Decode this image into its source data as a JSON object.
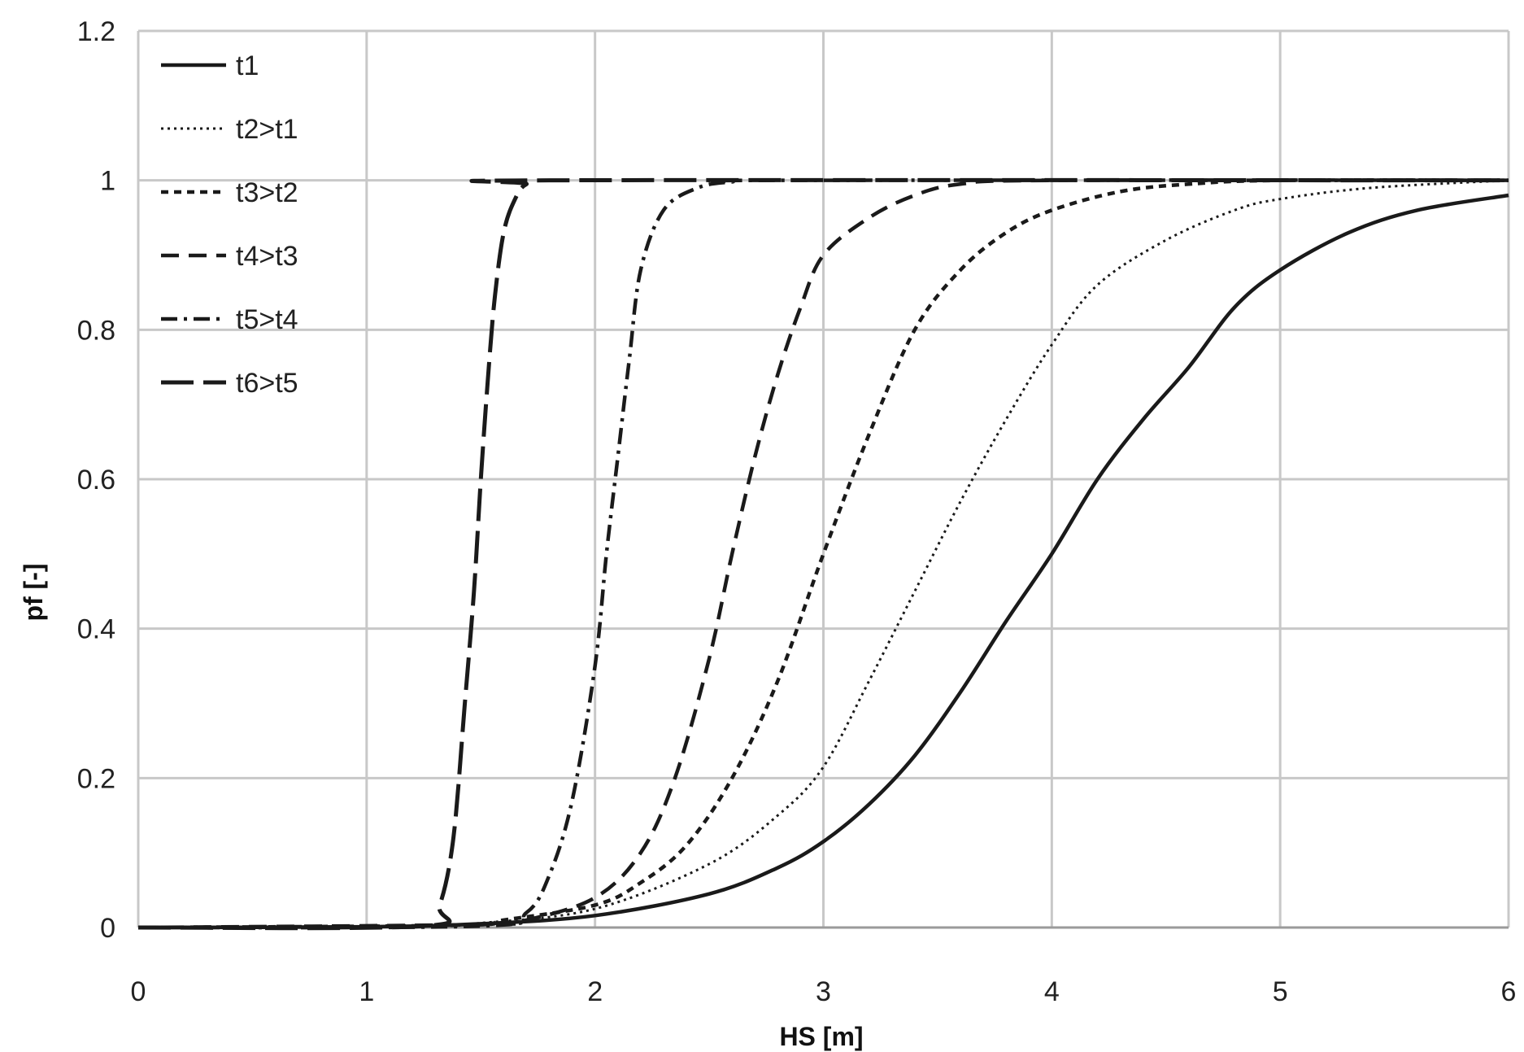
{
  "chart_data": {
    "type": "line",
    "title": "",
    "xlabel": "HS [m]",
    "ylabel": "pf [-]",
    "xlim": [
      0,
      6
    ],
    "ylim": [
      0,
      1.2
    ],
    "x_ticks": [
      0,
      1,
      2,
      3,
      4,
      5,
      6
    ],
    "x_tick_labels": [
      "0",
      "1",
      "2",
      "3",
      "4",
      "5",
      "6"
    ],
    "y_ticks": [
      0,
      0.2,
      0.4,
      0.6,
      0.8,
      1,
      1.2
    ],
    "y_tick_labels": [
      "0",
      "0.2",
      "0.4",
      "0.6",
      "0.8",
      "1",
      "1.2"
    ],
    "grid": true,
    "legend_position": "top-left",
    "series": [
      {
        "name": "t1",
        "style": "solid",
        "color": "#1a1a1a",
        "x": [
          0,
          1,
          1.5,
          2,
          2.5,
          2.8,
          3,
          3.2,
          3.4,
          3.6,
          3.8,
          4,
          4.2,
          4.4,
          4.6,
          4.8,
          5,
          5.3,
          5.6,
          6
        ],
        "y": [
          0,
          0.001,
          0.005,
          0.016,
          0.045,
          0.08,
          0.115,
          0.165,
          0.23,
          0.315,
          0.41,
          0.5,
          0.6,
          0.68,
          0.75,
          0.83,
          0.88,
          0.93,
          0.96,
          0.98
        ]
      },
      {
        "name": "t2>t1",
        "style": "dotted",
        "color": "#1a1a1a",
        "x": [
          0,
          1.2,
          1.5,
          2,
          2.5,
          2.8,
          3,
          3.2,
          3.4,
          3.6,
          3.8,
          4,
          4.2,
          4.5,
          4.8,
          5,
          5.4,
          6
        ],
        "y": [
          0,
          0.002,
          0.006,
          0.025,
          0.085,
          0.15,
          0.215,
          0.33,
          0.45,
          0.57,
          0.68,
          0.78,
          0.86,
          0.92,
          0.96,
          0.975,
          0.99,
          1.0
        ]
      },
      {
        "name": "t3>t2",
        "style": "short-dash",
        "color": "#1a1a1a",
        "x": [
          0,
          1.4,
          1.6,
          2,
          2.2,
          2.4,
          2.6,
          2.8,
          3,
          3.2,
          3.4,
          3.6,
          3.8,
          4,
          4.3,
          4.6,
          5,
          6
        ],
        "y": [
          0,
          0.003,
          0.01,
          0.03,
          0.06,
          0.11,
          0.2,
          0.33,
          0.5,
          0.66,
          0.8,
          0.88,
          0.93,
          0.96,
          0.985,
          0.995,
          1.0,
          1.0
        ]
      },
      {
        "name": "t4>t3",
        "style": "dash",
        "color": "#1a1a1a",
        "x": [
          0,
          1.5,
          1.7,
          2,
          2.2,
          2.35,
          2.5,
          2.6,
          2.7,
          2.8,
          2.9,
          3,
          3.2,
          3.4,
          3.6,
          4,
          6
        ],
        "y": [
          0,
          0.004,
          0.01,
          0.04,
          0.1,
          0.2,
          0.36,
          0.5,
          0.63,
          0.74,
          0.83,
          0.9,
          0.95,
          0.98,
          0.995,
          1.0,
          1.0
        ]
      },
      {
        "name": "t5>t4",
        "style": "dash-dot",
        "color": "#1a1a1a",
        "x": [
          0,
          1.5,
          1.7,
          1.8,
          1.9,
          2,
          2.05,
          2.1,
          2.15,
          2.2,
          2.3,
          2.45,
          2.6,
          2.8,
          6
        ],
        "y": [
          0,
          0.002,
          0.02,
          0.07,
          0.17,
          0.35,
          0.5,
          0.63,
          0.76,
          0.88,
          0.96,
          0.99,
          0.998,
          1.0,
          1.0
        ]
      },
      {
        "name": "t6>t5",
        "style": "long-dash",
        "color": "#1a1a1a",
        "x": [
          0,
          1.25,
          1.32,
          1.38,
          1.43,
          1.47,
          1.5,
          1.53,
          1.56,
          1.6,
          1.65,
          1.7,
          1.8,
          6
        ],
        "y": [
          0,
          0.002,
          0.03,
          0.12,
          0.3,
          0.45,
          0.6,
          0.73,
          0.84,
          0.93,
          0.975,
          0.995,
          1.0,
          1.0
        ]
      }
    ]
  }
}
